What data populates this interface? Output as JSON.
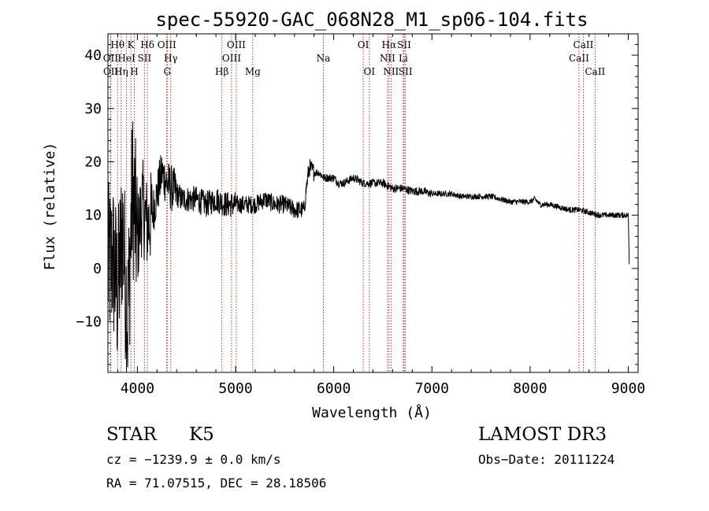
{
  "chart_data": {
    "type": "line",
    "title": "spec-55920-GAC_068N28_M1_sp06-104.fits",
    "xlabel": "Wavelength (Å)",
    "ylabel": "Flux (relative)",
    "xlim": [
      3700,
      9100
    ],
    "ylim": [
      -19.5,
      44
    ],
    "xticks": [
      4000,
      5000,
      6000,
      7000,
      8000,
      9000
    ],
    "yticks": [
      -10,
      0,
      10,
      20,
      30,
      40
    ],
    "series": [
      {
        "name": "spectrum",
        "x": [
          3700,
          3750,
          3800,
          3850,
          3900,
          3950,
          4000,
          4050,
          4100,
          4150,
          4200,
          4250,
          4300,
          4350,
          4400,
          4450,
          4500,
          4600,
          4700,
          4800,
          4900,
          5000,
          5100,
          5200,
          5300,
          5400,
          5500,
          5600,
          5700,
          5720,
          5750,
          5800,
          5850,
          5900,
          5950,
          6000,
          6050,
          6100,
          6200,
          6300,
          6400,
          6500,
          6600,
          6700,
          6800,
          6900,
          7000,
          7100,
          7200,
          7300,
          7400,
          7500,
          7600,
          7700,
          7800,
          7900,
          8000,
          8050,
          8100,
          8200,
          8300,
          8400,
          8500,
          8600,
          8700,
          8800,
          8900,
          9000,
          9010
        ],
        "y": [
          0,
          2,
          -5,
          8,
          -10,
          15,
          5,
          12,
          8,
          10,
          14,
          18,
          16,
          15,
          14,
          13,
          13,
          13,
          12,
          13,
          12,
          12,
          12,
          12,
          13,
          12,
          12,
          11,
          11,
          15,
          19,
          18,
          18,
          17,
          17,
          17,
          16,
          16,
          17,
          16,
          16,
          16,
          15,
          15,
          14.5,
          14.5,
          14,
          14,
          14,
          13.5,
          13.5,
          13.5,
          13.5,
          13,
          12.5,
          12.5,
          12.5,
          13,
          12,
          12,
          11.5,
          11,
          11,
          10.5,
          10,
          10,
          10,
          10,
          1
        ]
      }
    ],
    "annotations": "Dashed red vertical lines mark spectral line identifications with labels along the top of the plot.",
    "lines": [
      {
        "label": "Hθ",
        "wave": 3798,
        "row": 0
      },
      {
        "label": "OII",
        "wave": 3727,
        "row": 1
      },
      {
        "label": "OII",
        "wave": 3729,
        "row": 2
      },
      {
        "label": "Hη",
        "wave": 3835,
        "row": 2
      },
      {
        "label": "HeI",
        "wave": 3889,
        "row": 1
      },
      {
        "label": "K",
        "wave": 3934,
        "row": 0
      },
      {
        "label": "H",
        "wave": 3969,
        "row": 2
      },
      {
        "label": "SII",
        "wave": 4072,
        "row": 1
      },
      {
        "label": "Hδ",
        "wave": 4102,
        "row": 0
      },
      {
        "label": "OIII",
        "wave": 4300,
        "row": 0
      },
      {
        "label": "Hγ",
        "wave": 4340,
        "row": 1
      },
      {
        "label": "G",
        "wave": 4304,
        "row": 2
      },
      {
        "label": "Hβ",
        "wave": 4861,
        "row": 2
      },
      {
        "label": "OIII",
        "wave": 4959,
        "row": 1
      },
      {
        "label": "OIII",
        "wave": 5007,
        "row": 0
      },
      {
        "label": "Mg",
        "wave": 5175,
        "row": 2
      },
      {
        "label": "Na",
        "wave": 5894,
        "row": 1
      },
      {
        "label": "OI",
        "wave": 6300,
        "row": 0
      },
      {
        "label": "OI",
        "wave": 6363,
        "row": 2
      },
      {
        "label": "Hα",
        "wave": 6563,
        "row": 0
      },
      {
        "label": "NII",
        "wave": 6548,
        "row": 1
      },
      {
        "label": "NII",
        "wave": 6583,
        "row": 2
      },
      {
        "label": "SII",
        "wave": 6717,
        "row": 0
      },
      {
        "label": "SII",
        "wave": 6731,
        "row": 2
      },
      {
        "label": "Li",
        "wave": 6708,
        "row": 1
      },
      {
        "label": "CaII",
        "wave": 8498,
        "row": 1
      },
      {
        "label": "CaII",
        "wave": 8542,
        "row": 0
      },
      {
        "label": "CaII",
        "wave": 8662,
        "row": 2
      }
    ]
  },
  "info": {
    "object_class": "STAR",
    "subclass": "K5",
    "survey": "LAMOST DR3",
    "cz": "cz = −1239.9 ± 0.0 km/s",
    "obs_date": "Obs−Date: 20111224",
    "radec": "RA =  71.07515, DEC =  28.18506"
  }
}
